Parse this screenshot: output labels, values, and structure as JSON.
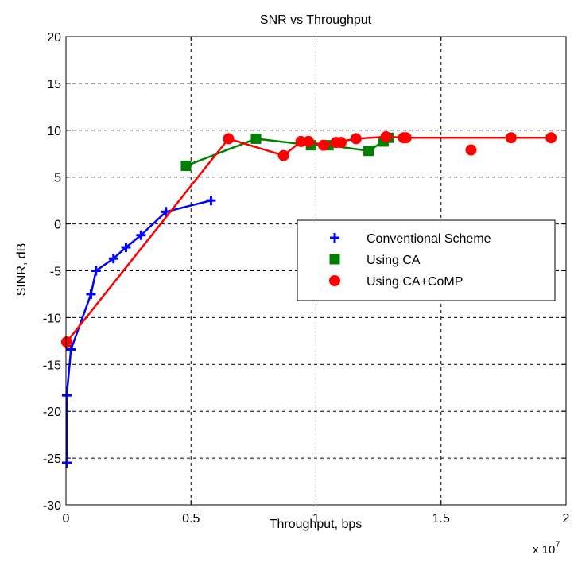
{
  "chart_data": {
    "type": "line",
    "title": "SNR vs Throughput",
    "xlabel": "Throughput, bps",
    "ylabel": "SINR, dB",
    "x_multiplier_label": "x 10",
    "x_multiplier_exp": "7",
    "xlim": [
      0,
      2
    ],
    "ylim": [
      -30,
      20
    ],
    "xticks": [
      "0",
      "0.5",
      "1",
      "1.5",
      "2"
    ],
    "yticks": [
      "-30",
      "-25",
      "-20",
      "-15",
      "-10",
      "-5",
      "0",
      "5",
      "10",
      "15",
      "20"
    ],
    "grid": true,
    "legend_position": "center-right",
    "series": [
      {
        "name": "Conventional Scheme",
        "color": "#0000ff",
        "marker": "plus",
        "x": [
          0.003,
          0.003,
          0.02,
          0.1,
          0.12,
          0.19,
          0.24,
          0.3,
          0.4,
          0.58
        ],
        "y": [
          -25.5,
          -18.3,
          -13.4,
          -7.5,
          -5.0,
          -3.7,
          -2.5,
          -1.2,
          1.3,
          2.5
        ]
      },
      {
        "name": "Using CA",
        "color": "#008000",
        "marker": "square",
        "x": [
          0.48,
          0.76,
          0.98,
          1.05,
          1.21,
          1.27,
          1.29
        ],
        "y": [
          6.2,
          9.1,
          8.4,
          8.4,
          7.8,
          8.8,
          9.2
        ]
      },
      {
        "name": "Using CA+CoMP",
        "color": "#ff0000",
        "marker": "circle",
        "x": [
          0.003,
          0.65,
          0.87,
          0.94,
          0.97,
          1.03,
          1.08,
          1.1,
          1.16,
          1.28,
          1.35,
          1.36,
          1.62,
          1.78,
          1.94
        ],
        "y": [
          -12.6,
          9.1,
          7.3,
          8.8,
          8.8,
          8.4,
          8.7,
          8.7,
          9.1,
          9.3,
          9.2,
          9.2,
          7.9,
          9.2,
          9.2
        ],
        "line_x": [
          0.003,
          0.65,
          0.87,
          0.94,
          0.97,
          1.03,
          1.08,
          1.16,
          1.28,
          1.36,
          1.94
        ],
        "line_y": [
          -12.6,
          9.1,
          7.3,
          8.8,
          8.8,
          8.4,
          8.7,
          9.1,
          9.3,
          9.2,
          9.2
        ]
      }
    ]
  }
}
